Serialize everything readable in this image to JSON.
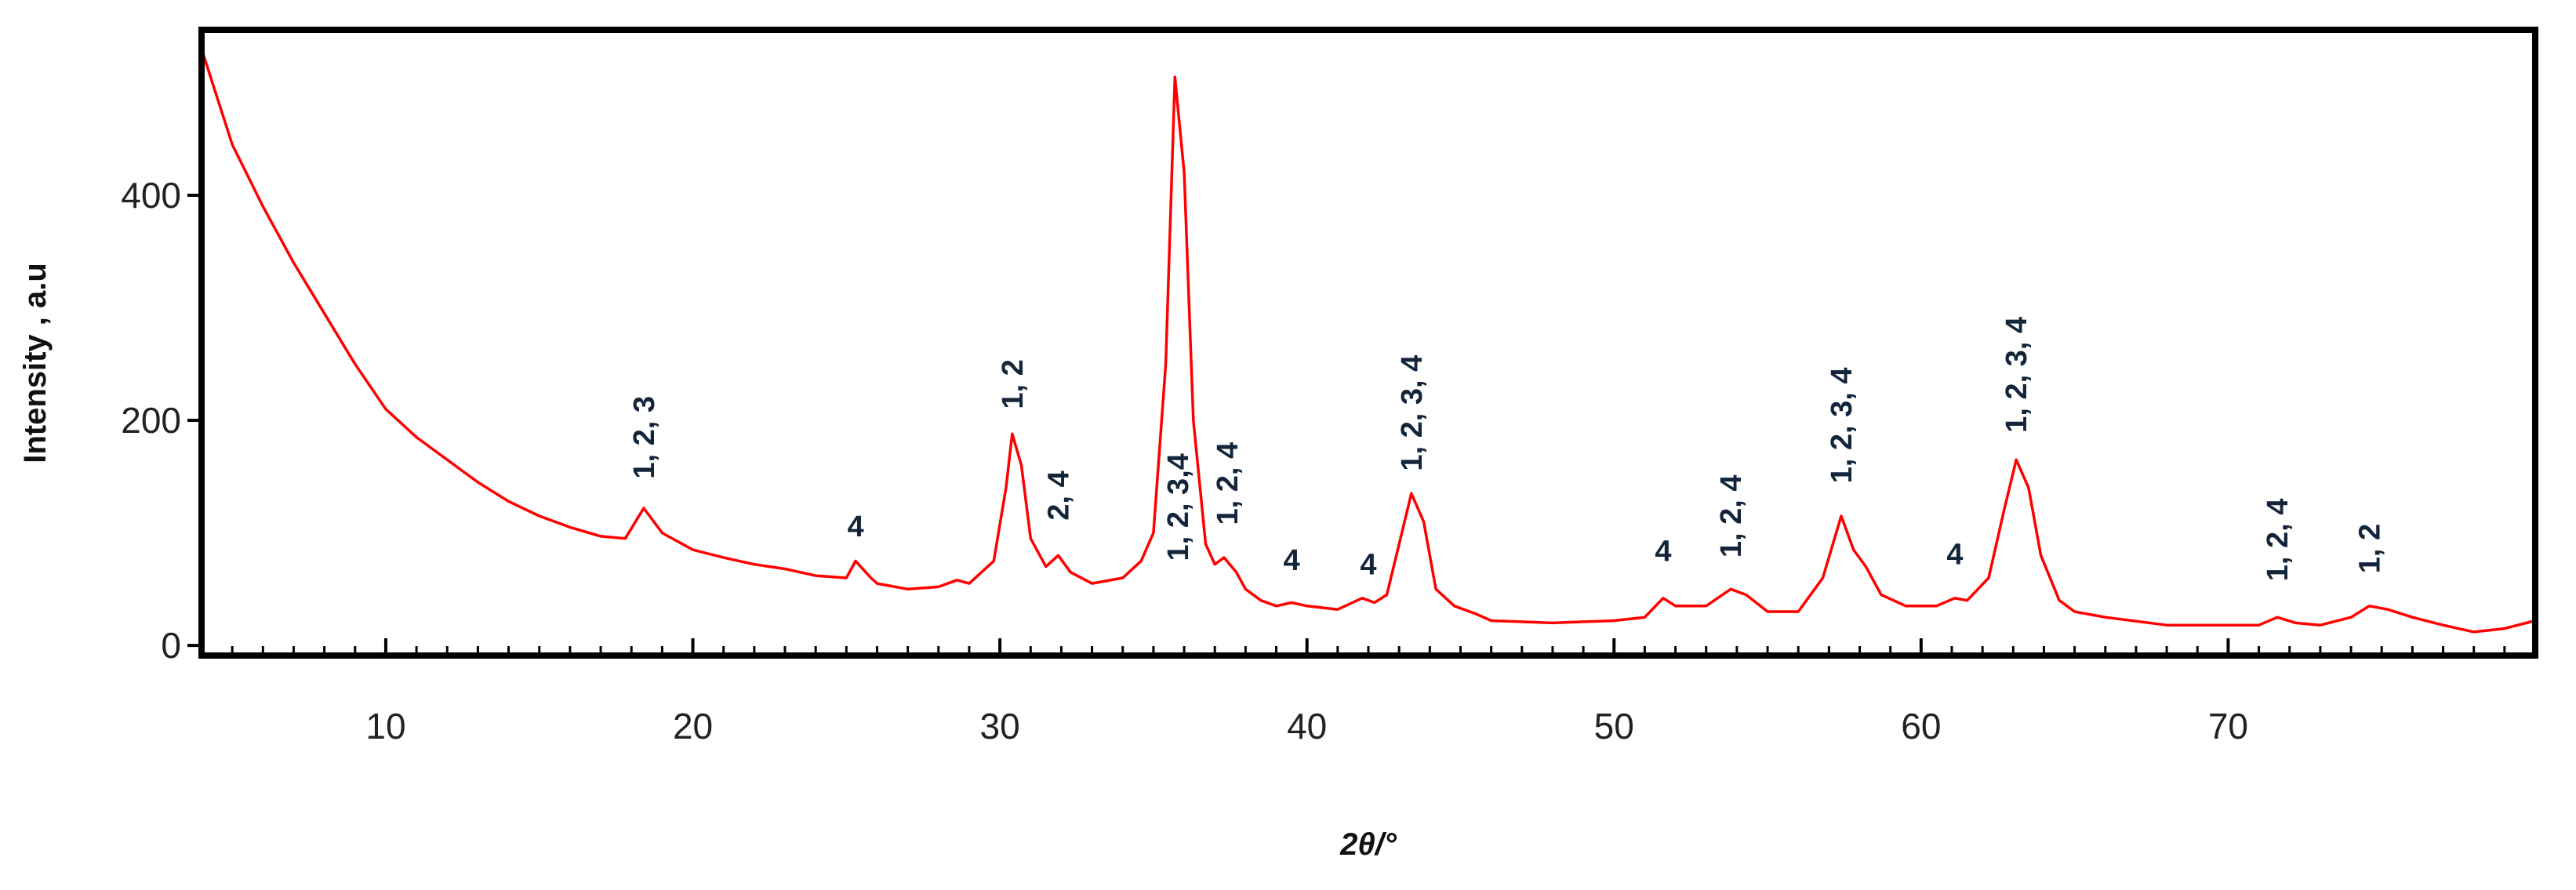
{
  "chart_data": {
    "type": "line",
    "xlabel": "2θ/°",
    "ylabel": "Intensity , a.u",
    "color": "#ff0000",
    "xlim": [
      4,
      80
    ],
    "ylim": [
      -9,
      547
    ],
    "xticks": [
      10,
      20,
      30,
      40,
      50,
      60,
      70
    ],
    "xminorticks": [
      5,
      6,
      7,
      8,
      9,
      11,
      12,
      13,
      14,
      15,
      16,
      17,
      18,
      19,
      21,
      22,
      23,
      24,
      25,
      26,
      27,
      28,
      29,
      31,
      32,
      33,
      34,
      35,
      36,
      37,
      38,
      39,
      41,
      42,
      43,
      44,
      45,
      46,
      47,
      48,
      49,
      51,
      52,
      53,
      54,
      55,
      56,
      57,
      58,
      59,
      61,
      62,
      63,
      64,
      65,
      66,
      67,
      68,
      69,
      71,
      72,
      73,
      74,
      75,
      76,
      77,
      78,
      79
    ],
    "yticks": [
      0,
      200,
      400
    ],
    "x": [
      4,
      5,
      6,
      7,
      8,
      9,
      10,
      11,
      12,
      13,
      14,
      15,
      16,
      17,
      17.8,
      18.4,
      19,
      20,
      21,
      22,
      23,
      24,
      25,
      25.3,
      25.8,
      26,
      27,
      28,
      28.6,
      29,
      29.8,
      30.2,
      30.4,
      30.7,
      31,
      31.5,
      31.9,
      32.3,
      33,
      34,
      34.6,
      35,
      35.4,
      35.7,
      36,
      36.3,
      36.7,
      37,
      37.3,
      37.7,
      38,
      38.5,
      39,
      39.5,
      40,
      41,
      41.8,
      42.2,
      42.6,
      43,
      43.4,
      43.8,
      44.2,
      44.8,
      45.5,
      46,
      48,
      50,
      51,
      51.6,
      52,
      53,
      53.8,
      54.3,
      55,
      56,
      56.8,
      57.4,
      57.8,
      58.2,
      58.7,
      59.5,
      60.5,
      61.1,
      61.5,
      62.2,
      62.7,
      63.1,
      63.5,
      63.9,
      64.5,
      65,
      66,
      68,
      70,
      71,
      71.6,
      72.2,
      73,
      74,
      74.6,
      75.2,
      76,
      77,
      78,
      79,
      80
    ],
    "values": [
      530,
      445,
      390,
      340,
      295,
      250,
      210,
      185,
      165,
      145,
      128,
      115,
      105,
      97,
      95,
      122,
      100,
      85,
      78,
      72,
      68,
      62,
      60,
      75,
      60,
      55,
      50,
      52,
      58,
      55,
      75,
      140,
      188,
      160,
      95,
      70,
      80,
      65,
      55,
      60,
      75,
      100,
      250,
      505,
      420,
      200,
      90,
      72,
      78,
      65,
      50,
      40,
      35,
      38,
      35,
      32,
      42,
      38,
      45,
      90,
      135,
      110,
      50,
      35,
      28,
      22,
      20,
      22,
      25,
      42,
      35,
      35,
      50,
      45,
      30,
      30,
      60,
      115,
      85,
      70,
      45,
      35,
      35,
      42,
      40,
      60,
      120,
      165,
      140,
      80,
      40,
      30,
      25,
      18,
      18,
      18,
      25,
      20,
      18,
      25,
      35,
      32,
      25,
      18,
      12,
      15,
      22
    ],
    "annotations": [
      {
        "text": "1, 2, 3",
        "x": 18.4,
        "y": 148
      },
      {
        "text": "4",
        "x": 25.3,
        "y": 97
      },
      {
        "text": "1, 2",
        "x": 30.4,
        "y": 210
      },
      {
        "text": "2, 4",
        "x": 31.9,
        "y": 111
      },
      {
        "text": "1, 2, 3,4",
        "x": 35.8,
        "y": 75
      },
      {
        "text": "1, 2, 4",
        "x": 37.4,
        "y": 107
      },
      {
        "text": "4",
        "x": 39.5,
        "y": 67
      },
      {
        "text": "4",
        "x": 42.0,
        "y": 63
      },
      {
        "text": "1, 2, 3, 4",
        "x": 43.4,
        "y": 155
      },
      {
        "text": "4",
        "x": 51.6,
        "y": 75
      },
      {
        "text": "1, 2, 4",
        "x": 53.8,
        "y": 78
      },
      {
        "text": "1, 2, 3, 4",
        "x": 57.4,
        "y": 144
      },
      {
        "text": "4",
        "x": 61.1,
        "y": 72
      },
      {
        "text": "1, 2, 3, 4",
        "x": 63.1,
        "y": 189
      },
      {
        "text": "1, 2, 4",
        "x": 71.6,
        "y": 57
      },
      {
        "text": "1, 2",
        "x": 74.6,
        "y": 64
      }
    ]
  }
}
